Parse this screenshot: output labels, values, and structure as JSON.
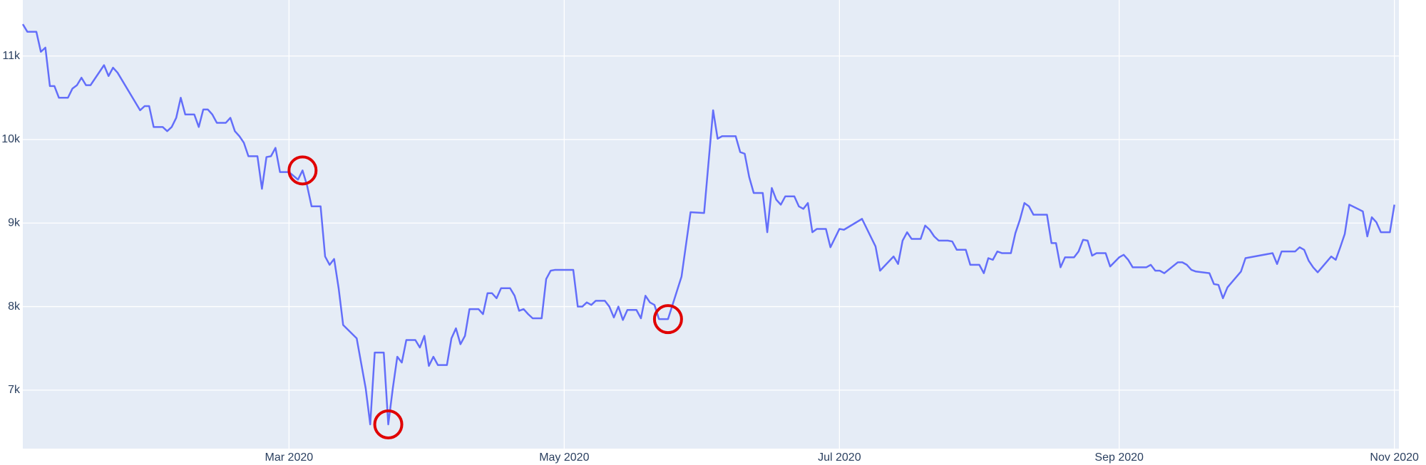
{
  "chart_data": {
    "type": "line",
    "xlim": [
      "2020-01-02",
      "2020-11-02"
    ],
    "ylim": [
      6300,
      11670
    ],
    "xticks": [
      {
        "value": "2020-03-01",
        "label": "Mar 2020"
      },
      {
        "value": "2020-05-01",
        "label": "May 2020"
      },
      {
        "value": "2020-07-01",
        "label": "Jul 2020"
      },
      {
        "value": "2020-09-01",
        "label": "Sep 2020"
      },
      {
        "value": "2020-11-01",
        "label": "Nov 2020"
      }
    ],
    "yticks": [
      {
        "value": 7000,
        "label": "7k"
      },
      {
        "value": 8000,
        "label": "8k"
      },
      {
        "value": 9000,
        "label": "9k"
      },
      {
        "value": 10000,
        "label": "10k"
      },
      {
        "value": 11000,
        "label": "11k"
      }
    ],
    "grid": true,
    "background": "#e5ecf6",
    "series": [
      {
        "color": "#636efa",
        "x": [
          "2020-01-02",
          "2020-01-03",
          "2020-01-05",
          "2020-01-06",
          "2020-01-07",
          "2020-01-08",
          "2020-01-09",
          "2020-01-10",
          "2020-01-12",
          "2020-01-13",
          "2020-01-14",
          "2020-01-15",
          "2020-01-16",
          "2020-01-17",
          "2020-01-20",
          "2020-01-21",
          "2020-01-22",
          "2020-01-23",
          "2020-01-28",
          "2020-01-29",
          "2020-01-30",
          "2020-01-31",
          "2020-02-02",
          "2020-02-03",
          "2020-02-04",
          "2020-02-05",
          "2020-02-06",
          "2020-02-07",
          "2020-02-09",
          "2020-02-10",
          "2020-02-11",
          "2020-02-12",
          "2020-02-13",
          "2020-02-14",
          "2020-02-16",
          "2020-02-17",
          "2020-02-18",
          "2020-02-19",
          "2020-02-20",
          "2020-02-21",
          "2020-02-23",
          "2020-02-24",
          "2020-02-25",
          "2020-02-26",
          "2020-02-27",
          "2020-02-28",
          "2020-03-01",
          "2020-03-03",
          "2020-03-04",
          "2020-03-05",
          "2020-03-06",
          "2020-03-08",
          "2020-03-09",
          "2020-03-10",
          "2020-03-11",
          "2020-03-12",
          "2020-03-13",
          "2020-03-16",
          "2020-03-18",
          "2020-03-19",
          "2020-03-20",
          "2020-03-22",
          "2020-03-23",
          "2020-03-24",
          "2020-03-25",
          "2020-03-26",
          "2020-03-27",
          "2020-03-29",
          "2020-03-30",
          "2020-03-31",
          "2020-04-01",
          "2020-04-02",
          "2020-04-03",
          "2020-04-05",
          "2020-04-06",
          "2020-04-07",
          "2020-04-08",
          "2020-04-09",
          "2020-04-10",
          "2020-04-12",
          "2020-04-13",
          "2020-04-14",
          "2020-04-15",
          "2020-04-16",
          "2020-04-17",
          "2020-04-19",
          "2020-04-20",
          "2020-04-21",
          "2020-04-22",
          "2020-04-23",
          "2020-04-24",
          "2020-04-26",
          "2020-04-27",
          "2020-04-28",
          "2020-04-29",
          "2020-05-03",
          "2020-05-04",
          "2020-05-05",
          "2020-05-06",
          "2020-05-07",
          "2020-05-08",
          "2020-05-10",
          "2020-05-11",
          "2020-05-12",
          "2020-05-13",
          "2020-05-14",
          "2020-05-15",
          "2020-05-17",
          "2020-05-18",
          "2020-05-19",
          "2020-05-20",
          "2020-05-21",
          "2020-05-22",
          "2020-05-24",
          "2020-05-27",
          "2020-05-29",
          "2020-06-01",
          "2020-06-03",
          "2020-06-04",
          "2020-06-05",
          "2020-06-08",
          "2020-06-09",
          "2020-06-10",
          "2020-06-11",
          "2020-06-12",
          "2020-06-14",
          "2020-06-15",
          "2020-06-16",
          "2020-06-17",
          "2020-06-18",
          "2020-06-19",
          "2020-06-21",
          "2020-06-22",
          "2020-06-23",
          "2020-06-24",
          "2020-06-25",
          "2020-06-26",
          "2020-06-28",
          "2020-06-29",
          "2020-07-01",
          "2020-07-02",
          "2020-07-06",
          "2020-07-09",
          "2020-07-10",
          "2020-07-13",
          "2020-07-14",
          "2020-07-15",
          "2020-07-16",
          "2020-07-17",
          "2020-07-19",
          "2020-07-20",
          "2020-07-21",
          "2020-07-22",
          "2020-07-23",
          "2020-07-25",
          "2020-07-26",
          "2020-07-27",
          "2020-07-29",
          "2020-07-30",
          "2020-08-01",
          "2020-08-02",
          "2020-08-03",
          "2020-08-04",
          "2020-08-05",
          "2020-08-06",
          "2020-08-08",
          "2020-08-09",
          "2020-08-10",
          "2020-08-11",
          "2020-08-12",
          "2020-08-13",
          "2020-08-16",
          "2020-08-17",
          "2020-08-18",
          "2020-08-19",
          "2020-08-20",
          "2020-08-22",
          "2020-08-23",
          "2020-08-24",
          "2020-08-25",
          "2020-08-26",
          "2020-08-27",
          "2020-08-29",
          "2020-08-30",
          "2020-09-01",
          "2020-09-02",
          "2020-09-03",
          "2020-09-04",
          "2020-09-07",
          "2020-09-08",
          "2020-09-09",
          "2020-09-10",
          "2020-09-11",
          "2020-09-14",
          "2020-09-15",
          "2020-09-16",
          "2020-09-17",
          "2020-09-18",
          "2020-09-21",
          "2020-09-22",
          "2020-09-23",
          "2020-09-24",
          "2020-09-25",
          "2020-09-28",
          "2020-09-29",
          "2020-10-05",
          "2020-10-06",
          "2020-10-07",
          "2020-10-10",
          "2020-10-11",
          "2020-10-12",
          "2020-10-13",
          "2020-10-14",
          "2020-10-15",
          "2020-10-18",
          "2020-10-19",
          "2020-10-20",
          "2020-10-21",
          "2020-10-22",
          "2020-10-25",
          "2020-10-26",
          "2020-10-27",
          "2020-10-28",
          "2020-10-29",
          "2020-10-31",
          "2020-11-01"
        ],
        "values": [
          11380,
          11290,
          11290,
          11050,
          11100,
          10640,
          10640,
          10500,
          10500,
          10610,
          10650,
          10740,
          10650,
          10650,
          10890,
          10760,
          10860,
          10800,
          10350,
          10400,
          10400,
          10150,
          10150,
          10100,
          10150,
          10260,
          10500,
          10300,
          10300,
          10150,
          10360,
          10360,
          10300,
          10200,
          10200,
          10260,
          10100,
          10040,
          9960,
          9800,
          9800,
          9410,
          9790,
          9800,
          9900,
          9610,
          9610,
          9520,
          9630,
          9450,
          9200,
          9200,
          8600,
          8500,
          8570,
          8220,
          7780,
          7620,
          7020,
          6590,
          7450,
          7450,
          6590,
          7020,
          7400,
          7330,
          7600,
          7600,
          7510,
          7650,
          7290,
          7400,
          7300,
          7300,
          7620,
          7740,
          7550,
          7650,
          7970,
          7970,
          7910,
          8160,
          8160,
          8100,
          8220,
          8220,
          8130,
          7950,
          7970,
          7910,
          7860,
          7860,
          8330,
          8430,
          8440,
          8440,
          8000,
          8000,
          8050,
          8020,
          8070,
          8070,
          8000,
          7870,
          8000,
          7840,
          7960,
          7960,
          7860,
          8130,
          8050,
          8020,
          7850,
          7850,
          8360,
          9130,
          9120,
          10350,
          10010,
          10040,
          10040,
          9850,
          9830,
          9550,
          9360,
          9360,
          8890,
          9420,
          9280,
          9220,
          9320,
          9320,
          9200,
          9170,
          9240,
          8890,
          8930,
          8930,
          8710,
          8930,
          8920,
          9050,
          8720,
          8430,
          8600,
          8510,
          8790,
          8890,
          8810,
          8810,
          8970,
          8920,
          8840,
          8790,
          8790,
          8780,
          8680,
          8680,
          8500,
          8500,
          8400,
          8580,
          8560,
          8660,
          8640,
          8640,
          8880,
          9040,
          9240,
          9200,
          9100,
          9100,
          8760,
          8760,
          8470,
          8590,
          8590,
          8660,
          8800,
          8790,
          8610,
          8640,
          8640,
          8480,
          8590,
          8620,
          8560,
          8470,
          8470,
          8500,
          8430,
          8430,
          8400,
          8530,
          8530,
          8500,
          8440,
          8420,
          8400,
          8270,
          8260,
          8100,
          8230,
          8420,
          8580,
          8640,
          8510,
          8660,
          8660,
          8710,
          8680,
          8550,
          8470,
          8410,
          8600,
          8560,
          8710,
          8870,
          9220,
          9140,
          8840,
          9070,
          9010,
          8890,
          8890,
          9220
        ]
      }
    ],
    "highlights": {
      "color": "#e00000",
      "x": [
        "2020-03-04",
        "2020-03-23",
        "2020-05-24"
      ],
      "values": [
        9630,
        6590,
        7850
      ]
    }
  }
}
